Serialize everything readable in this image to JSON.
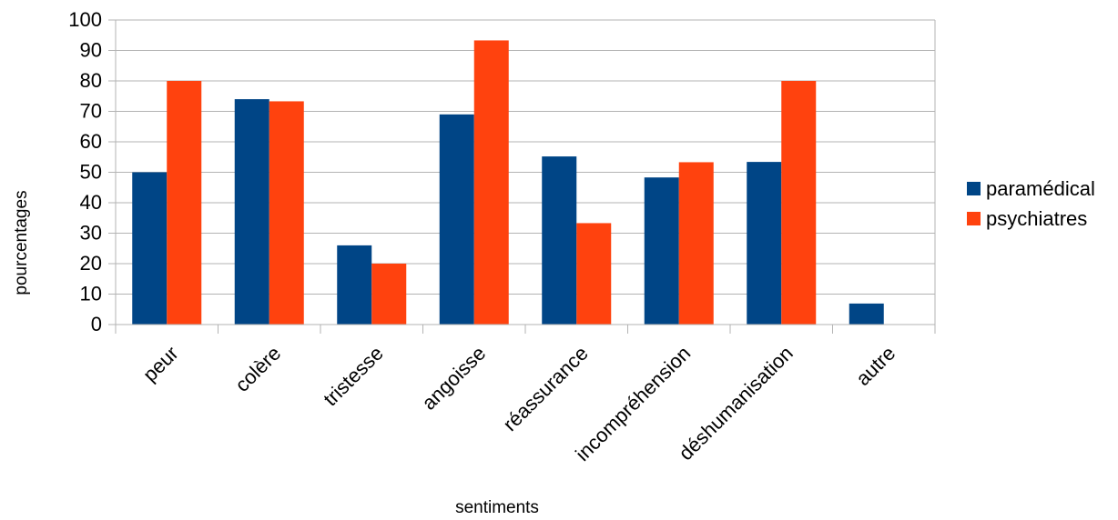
{
  "chart_data": {
    "type": "bar",
    "title": "",
    "xlabel": "sentiments",
    "ylabel": "pourcentages",
    "ylim": [
      0,
      100
    ],
    "yticks": [
      0,
      10,
      20,
      30,
      40,
      50,
      60,
      70,
      80,
      90,
      100
    ],
    "grid": true,
    "legend_position": "right",
    "categories": [
      "peur",
      "colère",
      "tristesse",
      "angoisse",
      "réassurance",
      "incompréhension",
      "déshumanisation",
      "autre"
    ],
    "series": [
      {
        "name": "paramédical",
        "color": "#004586",
        "values": [
          50,
          74,
          26,
          69,
          55.2,
          48.3,
          53.4,
          6.9
        ]
      },
      {
        "name": "psychiatres",
        "color": "#ff420e",
        "values": [
          80,
          73.3,
          20,
          93.3,
          33.3,
          53.3,
          80,
          0
        ]
      }
    ]
  }
}
